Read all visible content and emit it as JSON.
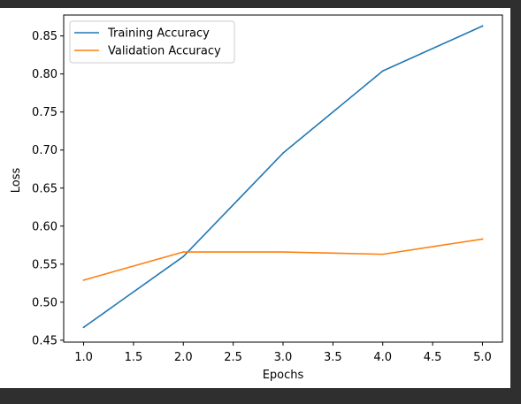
{
  "chart_data": {
    "type": "line",
    "title": "",
    "xlabel": "Epochs",
    "ylabel": "Loss",
    "xlim": [
      0.8,
      5.2
    ],
    "ylim": [
      0.4475,
      0.8775
    ],
    "xticks": [
      "1.0",
      "1.5",
      "2.0",
      "2.5",
      "3.0",
      "3.5",
      "4.0",
      "4.5",
      "5.0"
    ],
    "yticks": [
      "0.45",
      "0.50",
      "0.55",
      "0.60",
      "0.65",
      "0.70",
      "0.75",
      "0.80",
      "0.85"
    ],
    "x": [
      1,
      2,
      3,
      4,
      5
    ],
    "series": [
      {
        "name": "Training Accuracy",
        "color": "#1f77b4",
        "values": [
          0.467,
          0.56,
          0.696,
          0.804,
          0.863
        ]
      },
      {
        "name": "Validation Accuracy",
        "color": "#ff7f0e",
        "values": [
          0.529,
          0.566,
          0.566,
          0.563,
          0.583
        ]
      }
    ],
    "legend": "upper-left",
    "grid": false
  }
}
